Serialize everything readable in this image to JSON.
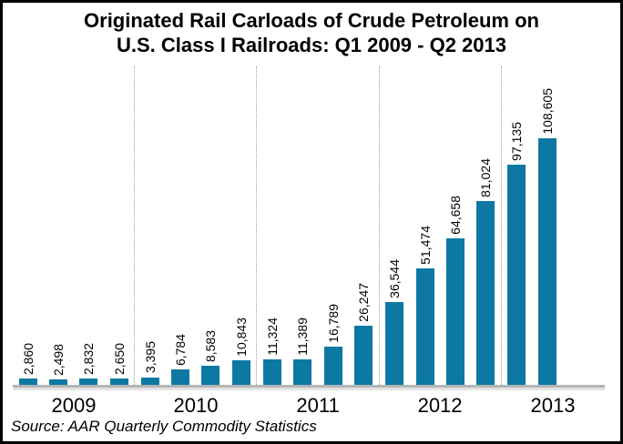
{
  "title": {
    "line1": "Originated Rail Carloads of Crude Petroleum on",
    "line2": "U.S. Class I Railroads: Q1 2009 - Q2 2013"
  },
  "source_note": "Source: AAR Quarterly Commodity Statistics",
  "chart_data": {
    "type": "bar",
    "title": "Originated Rail Carloads of Crude Petroleum on U.S. Class I Railroads: Q1 2009 - Q2 2013",
    "xlabel": "",
    "ylabel": "",
    "ylim": [
      0,
      110000
    ],
    "grid": "off",
    "legend": "none",
    "bar_color": "#0d79a3",
    "value_labels_rotated_90deg": true,
    "year_separator_style": "dotted",
    "groups": [
      {
        "year": "2009",
        "values": [
          2860,
          2498,
          2832,
          2650
        ],
        "labels": [
          "2,860",
          "2,498",
          "2,832",
          "2,650"
        ]
      },
      {
        "year": "2010",
        "values": [
          3395,
          6784,
          8583,
          10843
        ],
        "labels": [
          "3,395",
          "6,784",
          "8,583",
          "10,843"
        ]
      },
      {
        "year": "2011",
        "values": [
          11324,
          11389,
          16789,
          26247
        ],
        "labels": [
          "11,324",
          "11,389",
          "16,789",
          "26,247"
        ]
      },
      {
        "year": "2012",
        "values": [
          36544,
          51474,
          64658,
          81024
        ],
        "labels": [
          "36,544",
          "51,474",
          "64,658",
          "81,024"
        ]
      },
      {
        "year": "2013",
        "values": [
          97135,
          108605
        ],
        "labels": [
          "97,135",
          "108,605"
        ]
      }
    ]
  }
}
